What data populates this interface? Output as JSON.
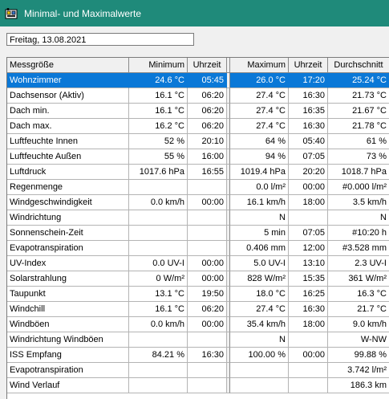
{
  "window": {
    "title": "Minimal- und Maximalwerte"
  },
  "date_field": {
    "value": "Freitag, 13.08.2021"
  },
  "table": {
    "headers": [
      "Messgröße",
      "Minimum",
      "Uhrzeit",
      "Maximum",
      "Uhrzeit",
      "Durchschnitt"
    ],
    "rows": [
      [
        "Wohnzimmer",
        "24.6 °C",
        "05:45",
        "26.0 °C",
        "17:20",
        "25.24 °C"
      ],
      [
        "Dachsensor (Aktiv)",
        "16.1 °C",
        "06:20",
        "27.4 °C",
        "16:30",
        "21.73 °C"
      ],
      [
        "Dach min.",
        "16.1 °C",
        "06:20",
        "27.4 °C",
        "16:35",
        "21.67 °C"
      ],
      [
        "Dach max.",
        "16.2 °C",
        "06:20",
        "27.4 °C",
        "16:30",
        "21.78 °C"
      ],
      [
        "Luftfeuchte Innen",
        "52 %",
        "20:10",
        "64 %",
        "05:40",
        "61 %"
      ],
      [
        "Luftfeuchte Außen",
        "55 %",
        "16:00",
        "94 %",
        "07:05",
        "73 %"
      ],
      [
        "Luftdruck",
        "1017.6 hPa",
        "16:55",
        "1019.4 hPa",
        "20:20",
        "1018.7 hPa"
      ],
      [
        "Regenmenge",
        "",
        "",
        "0.0 l/m²",
        "00:00",
        "#0.000 l/m²"
      ],
      [
        "Windgeschwindigkeit",
        "0.0 km/h",
        "00:00",
        "16.1 km/h",
        "18:00",
        "3.5 km/h"
      ],
      [
        "Windrichtung",
        "",
        "",
        "N",
        "",
        "N"
      ],
      [
        "Sonnenschein-Zeit",
        "",
        "",
        "5 min",
        "07:05",
        "#10:20 h"
      ],
      [
        "Evapotranspiration",
        "",
        "",
        "0.406 mm",
        "12:00",
        "#3.528 mm"
      ],
      [
        "UV-Index",
        "0.0 UV-I",
        "00:00",
        "5.0 UV-I",
        "13:10",
        "2.3 UV-I"
      ],
      [
        "Solarstrahlung",
        "0 W/m²",
        "00:00",
        "828 W/m²",
        "15:35",
        "361 W/m²"
      ],
      [
        "Taupunkt",
        "13.1 °C",
        "19:50",
        "18.0 °C",
        "16:25",
        "16.3 °C"
      ],
      [
        "Windchill",
        "16.1 °C",
        "06:20",
        "27.4 °C",
        "16:30",
        "21.7 °C"
      ],
      [
        "Windböen",
        "0.0 km/h",
        "00:00",
        "35.4 km/h",
        "18:00",
        "9.0 km/h"
      ],
      [
        "Windrichtung Windböen",
        "",
        "",
        "N",
        "",
        "W-NW"
      ],
      [
        "ISS Empfang",
        "84.21 %",
        "16:30",
        "100.00 %",
        "00:00",
        "99.88 %"
      ],
      [
        "Evapotranspiration",
        "",
        "",
        "",
        "",
        "3.742 l/m²"
      ],
      [
        "Wind Verlauf",
        "",
        "",
        "",
        "",
        "186.3 km"
      ]
    ],
    "selected_row": 0
  },
  "colors": {
    "titlebar": "#1f8a7a",
    "selection": "#0a78d7",
    "window_bg": "#f0f0f0"
  },
  "icons": {
    "app": "weather-station-icon"
  }
}
